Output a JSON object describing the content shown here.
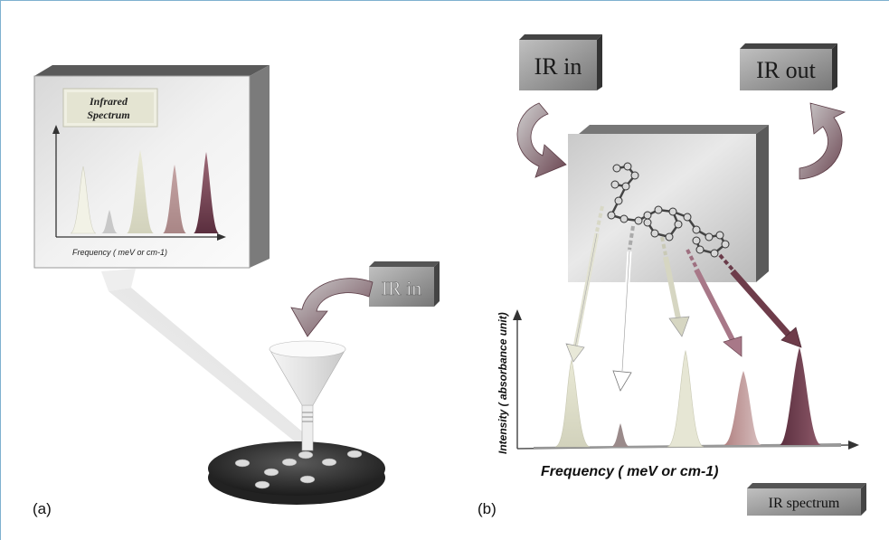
{
  "panel_a": {
    "label": "(a)",
    "screen_title_line1": "Infrared",
    "screen_title_line2": "Spectrum",
    "x_axis_label": "Frequency ( meV or cm-1)",
    "ir_in_label": "IR in"
  },
  "panel_b": {
    "label": "(b)",
    "ir_in_label": "IR in",
    "ir_out_label": "IR out",
    "y_axis_label": "Intensity ( absorbance unit)",
    "x_axis_label": "Frequency ( meV or cm-1)",
    "ir_spectrum_label": "IR spectrum"
  },
  "colors": {
    "frame_border": "#7fb1cf",
    "peak_light": "#dcdcc8",
    "peak_mid": "#b88a8a",
    "peak_dark": "#6e3c4a",
    "arrow_dark": "#7a5060",
    "box_grey": "#9a9a9a"
  }
}
